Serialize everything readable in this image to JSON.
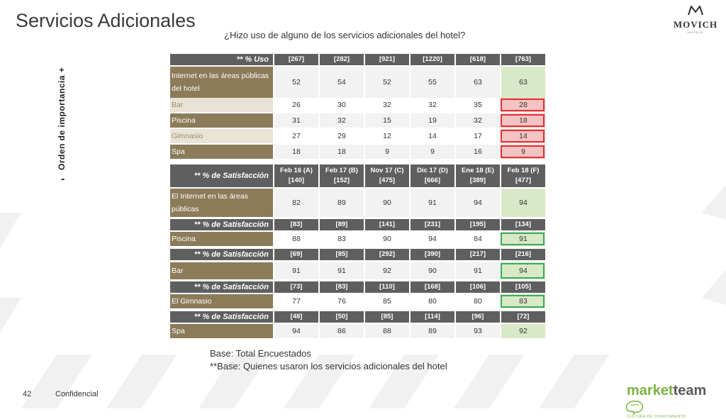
{
  "title": "Servicios Adicionales",
  "subtitle": "¿Hizo uso de alguno de los servicios adicionales del hotel?",
  "brand_logo": {
    "name": "MOVICH",
    "sub": "HOTELS"
  },
  "vertical_label": "Orden de importancia +",
  "vertical_minus": "-",
  "usage": {
    "header": [
      "** % Uso",
      "[267]",
      "[282]",
      "[921]",
      "[1220]",
      "[618]",
      "[763]"
    ],
    "rows": [
      {
        "label": "Internet en las áreas públicas del hotel",
        "values": [
          "52",
          "54",
          "52",
          "55",
          "63",
          "63"
        ]
      },
      {
        "label": "Bar",
        "values": [
          "26",
          "30",
          "32",
          "32",
          "35",
          "28"
        ]
      },
      {
        "label": "Piscina",
        "values": [
          "31",
          "32",
          "15",
          "19",
          "32",
          "18"
        ]
      },
      {
        "label": "Gimnasio",
        "values": [
          "27",
          "29",
          "12",
          "14",
          "17",
          "14"
        ]
      },
      {
        "label": "Spa",
        "values": [
          "18",
          "18",
          "9",
          "9",
          "16",
          "9"
        ]
      }
    ]
  },
  "satisfaction": {
    "header_label": "** % de Satisfacción",
    "period_headers": [
      "Feb 16 (A)[140]",
      "Feb 17 (B)[152]",
      "Nov 17 (C)[475]",
      "Dic 17 (D)[666]",
      "Ene 18 (E)[389]",
      "Feb 18 (F)[477]"
    ],
    "internet": {
      "label": "El Internet en las áreas públicas",
      "values": [
        "82",
        "89",
        "90",
        "91",
        "94",
        "94"
      ]
    },
    "piscina": {
      "bases": [
        "[83]",
        "[89]",
        "[141]",
        "[231]",
        "[195]",
        "[134]"
      ],
      "label": "Piscina",
      "values": [
        "88",
        "83",
        "90",
        "94",
        "84",
        "91"
      ]
    },
    "bar": {
      "bases": [
        "[69]",
        "[85]",
        "[292]",
        "[390]",
        "[217]",
        "[216]"
      ],
      "label": "Bar",
      "values": [
        "91",
        "91",
        "92",
        "90",
        "91",
        "94"
      ]
    },
    "gimnasio": {
      "bases": [
        "[73]",
        "[83]",
        "[110]",
        "[168]",
        "[106]",
        "[105]"
      ],
      "label": "El Gimnasio",
      "values": [
        "77",
        "76",
        "85",
        "80",
        "80",
        "83"
      ]
    },
    "spa": {
      "bases": [
        "[48]",
        "[50]",
        "[85]",
        "[114]",
        "[96]",
        "[72]"
      ],
      "label": "Spa",
      "values": [
        "94",
        "86",
        "88",
        "89",
        "93",
        "92"
      ]
    }
  },
  "base_note_1": "Base: Total Encuestados",
  "base_note_2": "**Base: Quienes usaron los servicios adicionales del hotel",
  "page_number": "42",
  "confidential": "Confidencial",
  "footer_logo": {
    "part1": "market",
    "part2": "team",
    "tagline": "CULTURA DE CONOCIMIENTO"
  },
  "colors": {
    "label_bg": "#8b7b59",
    "header_bg": "#5f5f5f",
    "highlight_green": "#d9e9c7",
    "highlight_red": "#f4c3c3",
    "box_green": "#3bab5a",
    "box_red": "#e03434"
  }
}
